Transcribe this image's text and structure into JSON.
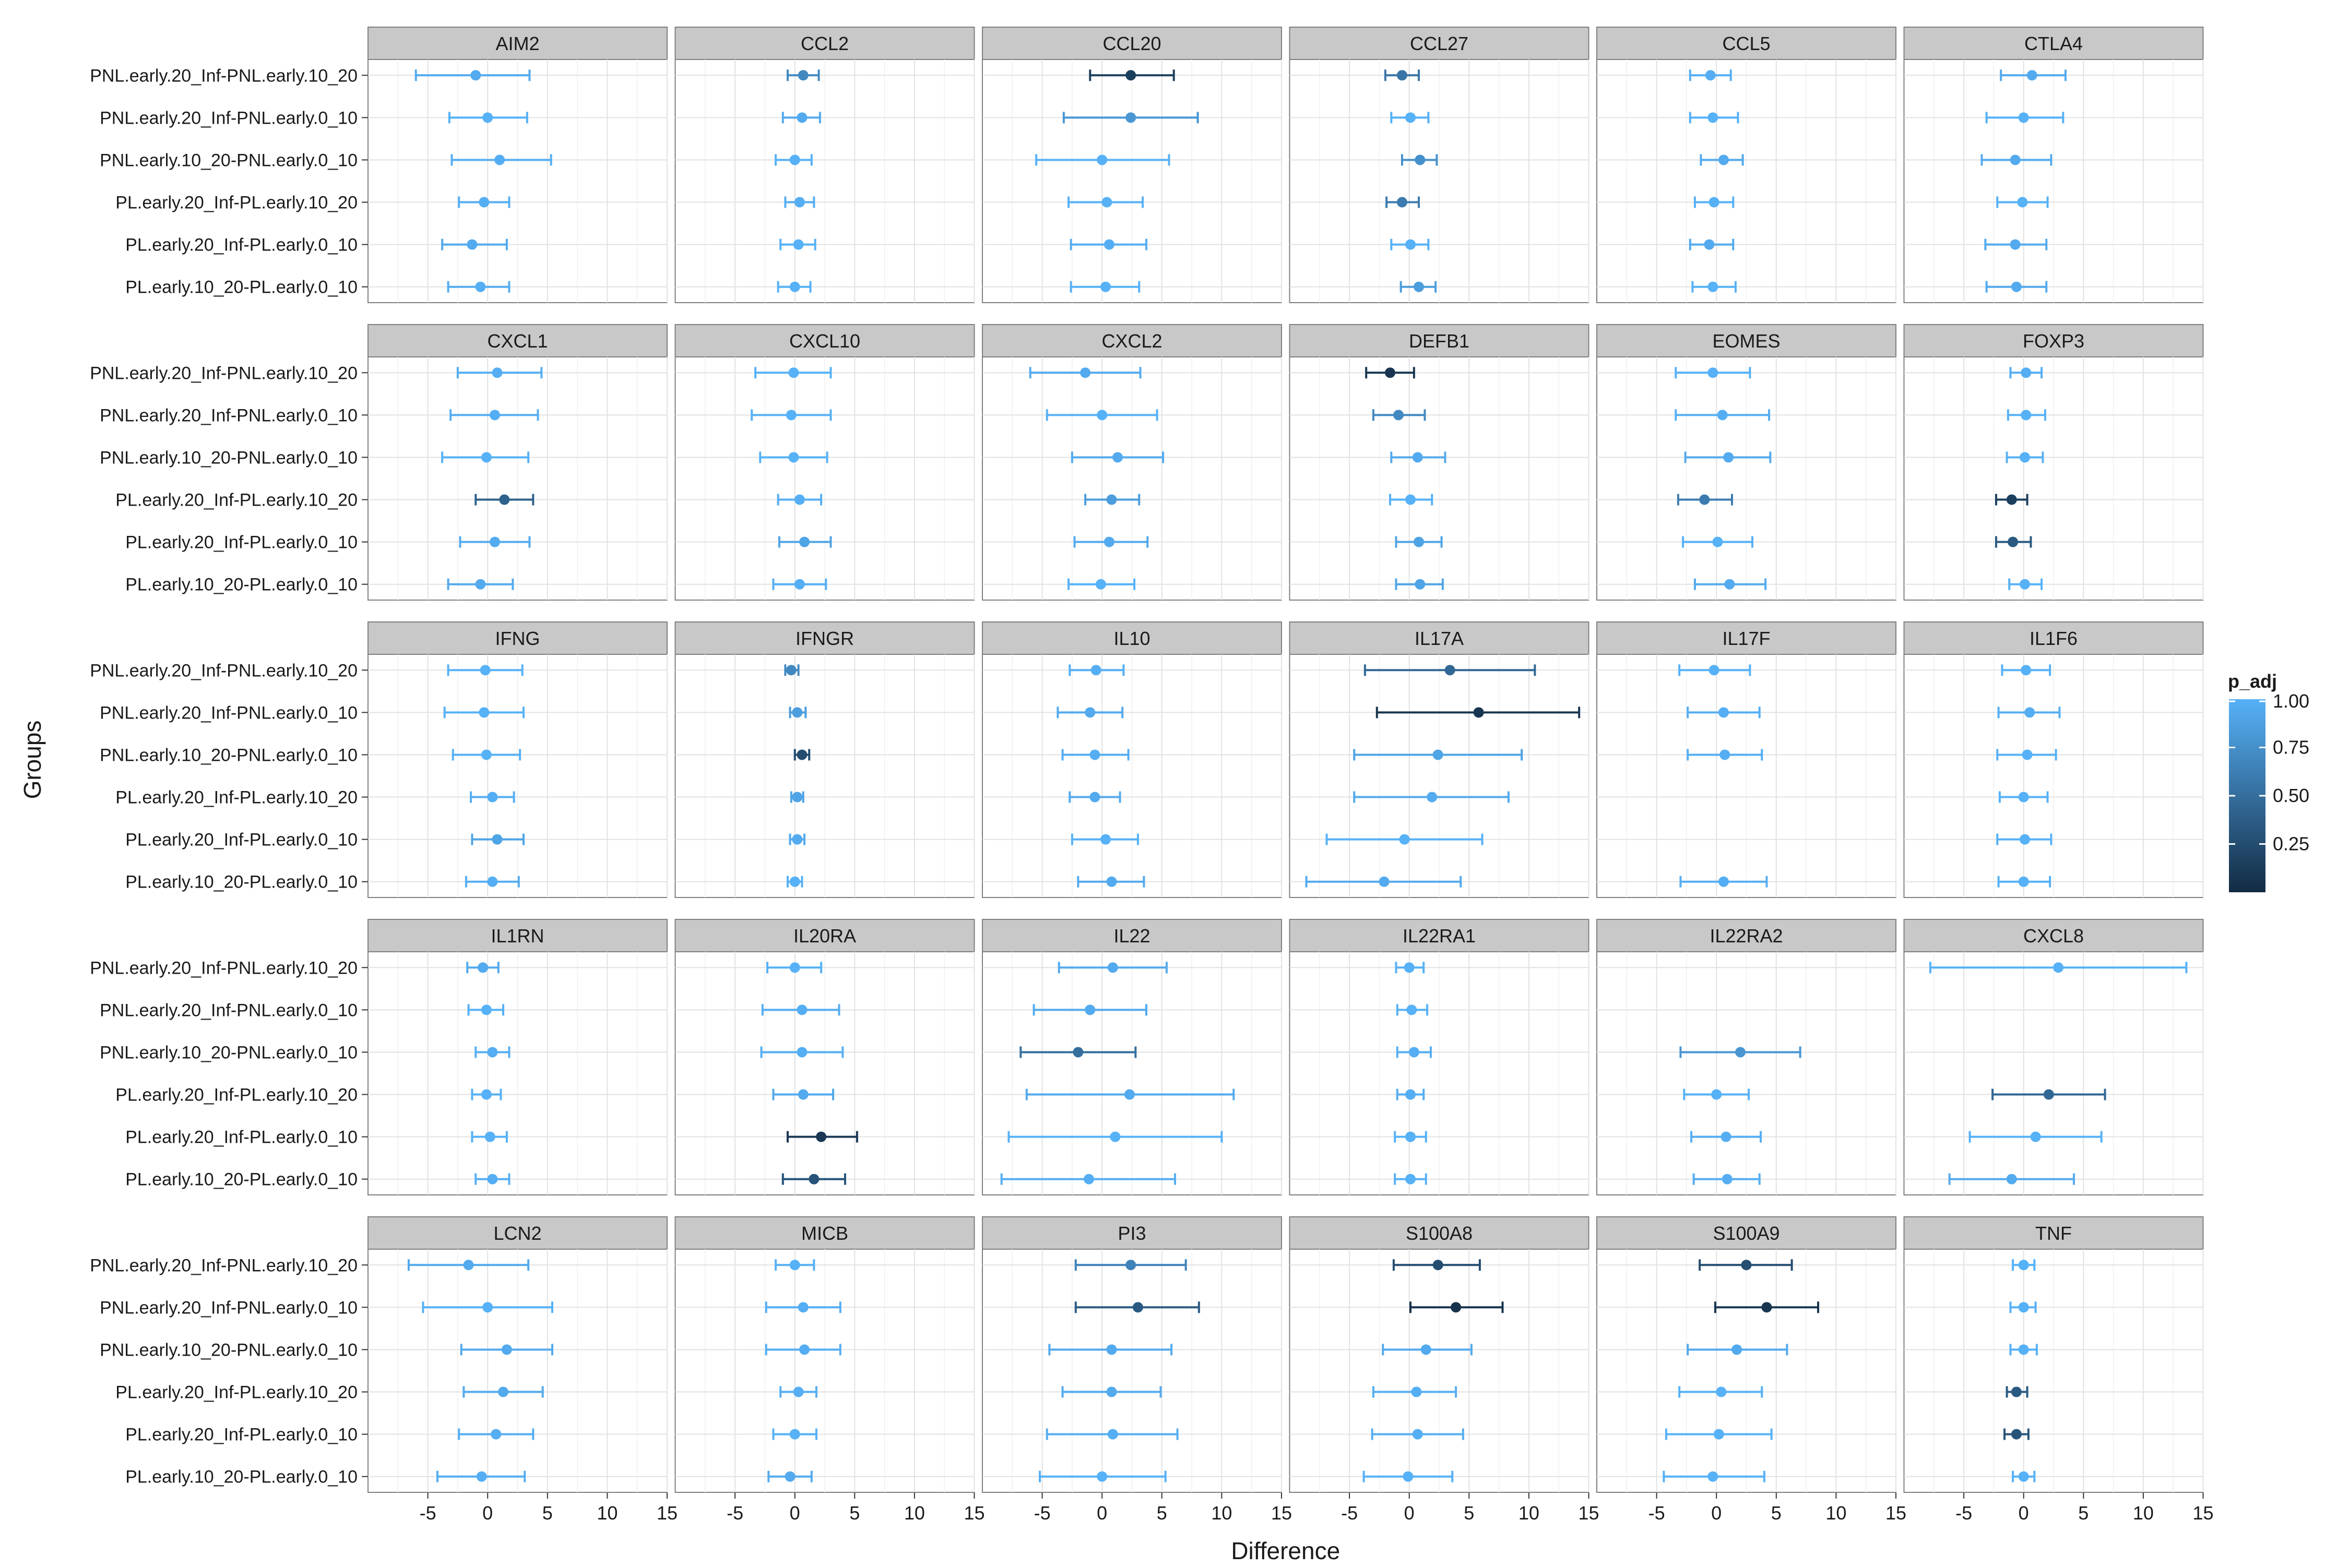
{
  "chart_data": {
    "type": "scatter",
    "subtype": "faceted-point-range",
    "xlabel": "Difference",
    "ylabel": "Groups",
    "xlim": [
      -10,
      15
    ],
    "x_ticks": [
      -5,
      0,
      5,
      10,
      15
    ],
    "grid": true,
    "legend": {
      "title": "p_adj",
      "placement": "right",
      "ticks": [
        "1.00",
        "0.75",
        "0.50",
        "0.25"
      ],
      "color_low": "#132B43",
      "color_high": "#56B1F7"
    },
    "groups": [
      "PNL.early.20_Inf-PNL.early.10_20",
      "PNL.early.20_Inf-PNL.early.0_10",
      "PNL.early.10_20-PNL.early.0_10",
      "PL.early.20_Inf-PL.early.10_20",
      "PL.early.20_Inf-PL.early.0_10",
      "PL.early.10_20-PL.early.0_10"
    ],
    "panels": [
      {
        "name": "AIM2",
        "points": [
          [
            -1,
            -6,
            3.5,
            0.95
          ],
          [
            0,
            -3.2,
            3.3,
            1
          ],
          [
            1,
            -3,
            5.3,
            0.98
          ],
          [
            -0.3,
            -2.4,
            1.8,
            0.98
          ],
          [
            -1.3,
            -3.8,
            1.6,
            0.95
          ],
          [
            -0.6,
            -3.3,
            1.8,
            0.98
          ]
        ]
      },
      {
        "name": "CCL2",
        "points": [
          [
            0.7,
            -0.6,
            2,
            0.7
          ],
          [
            0.6,
            -1,
            2.1,
            0.95
          ],
          [
            0,
            -1.6,
            1.4,
            1
          ],
          [
            0.4,
            -0.8,
            1.6,
            0.98
          ],
          [
            0.3,
            -1.2,
            1.7,
            1
          ],
          [
            0,
            -1.4,
            1.3,
            1
          ]
        ]
      },
      {
        "name": "CCL20",
        "points": [
          [
            2.4,
            -1,
            6,
            0.15
          ],
          [
            2.4,
            -3.2,
            8,
            0.8
          ],
          [
            0,
            -5.5,
            5.6,
            1
          ],
          [
            0.4,
            -2.8,
            3.4,
            1
          ],
          [
            0.6,
            -2.6,
            3.7,
            0.98
          ],
          [
            0.3,
            -2.6,
            3.1,
            1
          ]
        ]
      },
      {
        "name": "CCL27",
        "points": [
          [
            -0.6,
            -2,
            0.8,
            0.55
          ],
          [
            0.1,
            -1.5,
            1.6,
            1
          ],
          [
            0.9,
            -0.6,
            2.3,
            0.75
          ],
          [
            -0.6,
            -1.9,
            0.8,
            0.6
          ],
          [
            0.1,
            -1.5,
            1.6,
            1
          ],
          [
            0.8,
            -0.7,
            2.2,
            0.85
          ]
        ]
      },
      {
        "name": "CCL5",
        "points": [
          [
            -0.5,
            -2.2,
            1.2,
            0.98
          ],
          [
            -0.3,
            -2.2,
            1.8,
            1
          ],
          [
            0.6,
            -1.3,
            2.2,
            0.95
          ],
          [
            -0.2,
            -1.8,
            1.4,
            1
          ],
          [
            -0.6,
            -2.2,
            1.4,
            0.95
          ],
          [
            -0.3,
            -2,
            1.6,
            1
          ]
        ]
      },
      {
        "name": "CTLA4",
        "points": [
          [
            0.7,
            -1.9,
            3.5,
            0.95
          ],
          [
            0,
            -3.1,
            3.3,
            1
          ],
          [
            -0.7,
            -3.5,
            2.3,
            0.95
          ],
          [
            -0.1,
            -2.2,
            2,
            1
          ],
          [
            -0.7,
            -3.2,
            1.9,
            0.95
          ],
          [
            -0.6,
            -3.1,
            1.9,
            0.95
          ]
        ]
      },
      {
        "name": "CXCL1",
        "points": [
          [
            0.8,
            -2.5,
            4.5,
            0.98
          ],
          [
            0.6,
            -3.1,
            4.2,
            0.98
          ],
          [
            -0.1,
            -3.8,
            3.4,
            1
          ],
          [
            1.4,
            -1,
            3.8,
            0.4
          ],
          [
            0.6,
            -2.3,
            3.5,
            0.95
          ],
          [
            -0.6,
            -3.3,
            2.1,
            0.95
          ]
        ]
      },
      {
        "name": "CXCL10",
        "points": [
          [
            -0.1,
            -3.3,
            3,
            1
          ],
          [
            -0.3,
            -3.6,
            3,
            1
          ],
          [
            -0.1,
            -2.9,
            2.7,
            1
          ],
          [
            0.4,
            -1.4,
            2.2,
            0.98
          ],
          [
            0.8,
            -1.3,
            3,
            0.9
          ],
          [
            0.4,
            -1.8,
            2.6,
            0.98
          ]
        ]
      },
      {
        "name": "CXCL2",
        "points": [
          [
            -1.4,
            -6,
            3.2,
            0.95
          ],
          [
            0,
            -4.6,
            4.6,
            1
          ],
          [
            1.3,
            -2.5,
            5.1,
            0.95
          ],
          [
            0.8,
            -1.4,
            3.1,
            0.85
          ],
          [
            0.6,
            -2.3,
            3.8,
            0.95
          ],
          [
            -0.1,
            -2.8,
            2.7,
            1
          ]
        ]
      },
      {
        "name": "DEFB1",
        "points": [
          [
            -1.6,
            -3.6,
            0.4,
            0.08
          ],
          [
            -0.9,
            -3,
            1.3,
            0.7
          ],
          [
            0.7,
            -1.5,
            3,
            0.95
          ],
          [
            0.1,
            -1.6,
            1.9,
            1
          ],
          [
            0.8,
            -1.1,
            2.7,
            0.9
          ],
          [
            0.9,
            -1.1,
            2.8,
            0.9
          ]
        ]
      },
      {
        "name": "EOMES",
        "points": [
          [
            -0.3,
            -3.4,
            2.8,
            1
          ],
          [
            0.5,
            -3.4,
            4.4,
            0.98
          ],
          [
            1,
            -2.6,
            4.5,
            0.95
          ],
          [
            -1,
            -3.2,
            1.3,
            0.6
          ],
          [
            0.1,
            -2.8,
            3,
            1
          ],
          [
            1.1,
            -1.8,
            4.1,
            0.95
          ]
        ]
      },
      {
        "name": "FOXP3",
        "points": [
          [
            0.2,
            -1.1,
            1.5,
            0.98
          ],
          [
            0.2,
            -1.3,
            1.8,
            1
          ],
          [
            0.1,
            -1.4,
            1.6,
            1
          ],
          [
            -1,
            -2.3,
            0.3,
            0.15
          ],
          [
            -0.9,
            -2.3,
            0.6,
            0.35
          ],
          [
            0.1,
            -1.2,
            1.5,
            1
          ]
        ]
      },
      {
        "name": "IFNG",
        "points": [
          [
            -0.2,
            -3.3,
            2.9,
            1
          ],
          [
            -0.3,
            -3.6,
            3,
            1
          ],
          [
            -0.1,
            -2.9,
            2.7,
            1
          ],
          [
            0.4,
            -1.4,
            2.2,
            0.98
          ],
          [
            0.8,
            -1.3,
            3,
            0.9
          ],
          [
            0.4,
            -1.8,
            2.6,
            0.98
          ]
        ]
      },
      {
        "name": "IFNGR",
        "points": [
          [
            -0.3,
            -0.8,
            0.3,
            0.7
          ],
          [
            0.2,
            -0.4,
            0.9,
            0.85
          ],
          [
            0.6,
            0,
            1.2,
            0.25
          ],
          [
            0.2,
            -0.3,
            0.7,
            0.9
          ],
          [
            0.2,
            -0.4,
            0.8,
            0.95
          ],
          [
            0,
            -0.6,
            0.6,
            1
          ]
        ]
      },
      {
        "name": "IL10",
        "points": [
          [
            -0.5,
            -2.7,
            1.8,
            0.98
          ],
          [
            -1,
            -3.7,
            1.7,
            0.95
          ],
          [
            -0.6,
            -3.3,
            2.2,
            0.98
          ],
          [
            -0.6,
            -2.7,
            1.5,
            0.95
          ],
          [
            0.3,
            -2.5,
            3,
            1
          ],
          [
            0.8,
            -2,
            3.5,
            0.95
          ]
        ]
      },
      {
        "name": "IL17A",
        "points": [
          [
            3.4,
            -3.7,
            10.5,
            0.45
          ],
          [
            5.8,
            -2.7,
            14.2,
            0.08
          ],
          [
            2.4,
            -4.6,
            9.4,
            0.9
          ],
          [
            1.9,
            -4.6,
            8.3,
            0.95
          ],
          [
            -0.4,
            -6.9,
            6.1,
            1
          ],
          [
            -2.1,
            -8.6,
            4.3,
            0.95
          ]
        ]
      },
      {
        "name": "IL17F",
        "points": [
          [
            -0.2,
            -3.1,
            2.8,
            1
          ],
          [
            0.6,
            -2.4,
            3.6,
            0.98
          ],
          [
            0.7,
            -2.4,
            3.8,
            0.98
          ],
          null,
          null,
          [
            0.6,
            -3,
            4.2,
            0.98
          ]
        ]
      },
      {
        "name": "IL1F6",
        "points": [
          [
            0.2,
            -1.8,
            2.2,
            1
          ],
          [
            0.5,
            -2.1,
            3,
            0.98
          ],
          [
            0.3,
            -2.2,
            2.7,
            1
          ],
          [
            0,
            -2,
            2,
            1
          ],
          [
            0.1,
            -2.2,
            2.3,
            1
          ],
          [
            0,
            -2.1,
            2.2,
            1
          ]
        ]
      },
      {
        "name": "IL1RN",
        "points": [
          [
            -0.4,
            -1.7,
            0.9,
            0.95
          ],
          [
            -0.1,
            -1.6,
            1.3,
            1
          ],
          [
            0.4,
            -1,
            1.8,
            0.98
          ],
          [
            -0.1,
            -1.3,
            1.1,
            1
          ],
          [
            0.2,
            -1.3,
            1.6,
            1
          ],
          [
            0.4,
            -1,
            1.8,
            0.98
          ]
        ]
      },
      {
        "name": "IL20RA",
        "points": [
          [
            0,
            -2.3,
            2.2,
            1
          ],
          [
            0.6,
            -2.7,
            3.7,
            0.98
          ],
          [
            0.6,
            -2.8,
            4,
            0.98
          ],
          [
            0.7,
            -1.8,
            3.2,
            0.95
          ],
          [
            2.2,
            -0.6,
            5.2,
            0.1
          ],
          [
            1.6,
            -1,
            4.2,
            0.3
          ]
        ]
      },
      {
        "name": "IL22",
        "points": [
          [
            0.9,
            -3.6,
            5.4,
            0.95
          ],
          [
            -1,
            -5.7,
            3.7,
            0.95
          ],
          [
            -2,
            -6.8,
            2.8,
            0.5
          ],
          [
            2.3,
            -6.3,
            11,
            0.95
          ],
          [
            1.1,
            -7.8,
            10,
            1
          ],
          [
            -1.1,
            -8.4,
            6.1,
            0.98
          ]
        ]
      },
      {
        "name": "IL22RA1",
        "points": [
          [
            0,
            -1.1,
            1.2,
            1
          ],
          [
            0.2,
            -1,
            1.5,
            1
          ],
          [
            0.4,
            -1,
            1.8,
            0.98
          ],
          [
            0.1,
            -1,
            1.2,
            0.98
          ],
          [
            0.1,
            -1.2,
            1.4,
            1
          ],
          [
            0.1,
            -1.2,
            1.4,
            1
          ]
        ]
      },
      {
        "name": "IL22RA2",
        "points": [
          null,
          null,
          [
            2,
            -3,
            7,
            0.8
          ],
          [
            0,
            -2.7,
            2.7,
            1
          ],
          [
            0.8,
            -2.1,
            3.7,
            0.98
          ],
          [
            0.9,
            -1.9,
            3.6,
            0.98
          ]
        ]
      },
      {
        "name": "CXCL8",
        "points": [
          [
            2.9,
            -7.8,
            13.6,
            1
          ],
          null,
          null,
          [
            2.1,
            -2.6,
            6.8,
            0.45
          ],
          [
            1,
            -4.5,
            6.5,
            1
          ],
          [
            -1,
            -6.2,
            4.2,
            0.95
          ]
        ]
      },
      {
        "name": "LCN2",
        "points": [
          [
            -1.6,
            -6.6,
            3.4,
            0.95
          ],
          [
            0,
            -5.4,
            5.4,
            1
          ],
          [
            1.6,
            -2.2,
            5.4,
            0.95
          ],
          [
            1.3,
            -2,
            4.6,
            0.95
          ],
          [
            0.7,
            -2.4,
            3.8,
            0.98
          ],
          [
            -0.5,
            -4.2,
            3.1,
            0.98
          ]
        ]
      },
      {
        "name": "MICB",
        "points": [
          [
            0,
            -1.6,
            1.6,
            1
          ],
          [
            0.7,
            -2.4,
            3.8,
            0.98
          ],
          [
            0.8,
            -2.4,
            3.8,
            0.98
          ],
          [
            0.3,
            -1.2,
            1.8,
            0.98
          ],
          [
            0,
            -1.8,
            1.8,
            1
          ],
          [
            -0.4,
            -2.2,
            1.4,
            0.95
          ]
        ]
      },
      {
        "name": "PI3",
        "points": [
          [
            2.4,
            -2.2,
            7,
            0.65
          ],
          [
            3,
            -2.2,
            8.1,
            0.35
          ],
          [
            0.8,
            -4.4,
            5.8,
            0.95
          ],
          [
            0.8,
            -3.3,
            4.9,
            0.95
          ],
          [
            0.9,
            -4.6,
            6.3,
            0.98
          ],
          [
            0,
            -5.2,
            5.3,
            1
          ]
        ]
      },
      {
        "name": "S100A8",
        "points": [
          [
            2.4,
            -1.3,
            5.9,
            0.25
          ],
          [
            3.9,
            0.1,
            7.8,
            0.05
          ],
          [
            1.4,
            -2.2,
            5.2,
            0.95
          ],
          [
            0.6,
            -3,
            3.9,
            0.98
          ],
          [
            0.7,
            -3.1,
            4.5,
            0.98
          ],
          [
            -0.1,
            -3.8,
            3.6,
            1
          ]
        ]
      },
      {
        "name": "S100A9",
        "points": [
          [
            2.5,
            -1.4,
            6.3,
            0.25
          ],
          [
            4.2,
            -0.1,
            8.5,
            0.08
          ],
          [
            1.7,
            -2.4,
            5.9,
            0.95
          ],
          [
            0.4,
            -3.1,
            3.8,
            1
          ],
          [
            0.2,
            -4.2,
            4.6,
            1
          ],
          [
            -0.3,
            -4.4,
            4,
            1
          ]
        ]
      },
      {
        "name": "TNF",
        "points": [
          [
            0,
            -0.9,
            0.9,
            1
          ],
          [
            0,
            -1.1,
            1,
            1
          ],
          [
            0,
            -1.1,
            1.1,
            1
          ],
          [
            -0.6,
            -1.4,
            0.3,
            0.35
          ],
          [
            -0.6,
            -1.6,
            0.4,
            0.3
          ],
          [
            0,
            -0.9,
            0.9,
            1
          ]
        ]
      }
    ]
  }
}
